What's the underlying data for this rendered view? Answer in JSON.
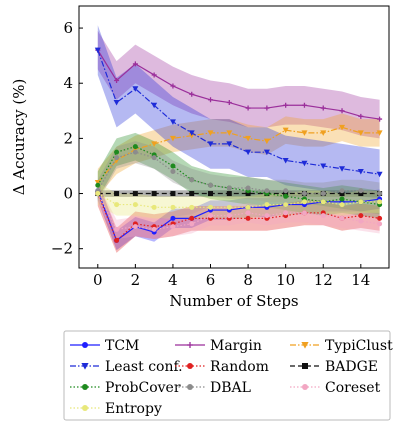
{
  "chart_data": {
    "type": "line",
    "xlabel": "Number of Steps",
    "ylabel": "Δ Accuracy (%)",
    "xlim": [
      -1,
      15.5
    ],
    "ylim": [
      -2.7,
      6.8
    ],
    "xticks": [
      0,
      2,
      4,
      6,
      8,
      10,
      12,
      14
    ],
    "yticks": [
      -2,
      0,
      2,
      4,
      6
    ],
    "grid": false,
    "legend_placement": "below-plot",
    "x": [
      0,
      1,
      2,
      3,
      4,
      5,
      6,
      7,
      8,
      9,
      10,
      11,
      12,
      13,
      14,
      15
    ],
    "series": [
      {
        "name": "TCM",
        "color": "#1f1fff",
        "style": "solid",
        "marker": "circle",
        "values": [
          0.1,
          -1.7,
          -1.2,
          -1.4,
          -0.9,
          -0.9,
          -0.6,
          -0.6,
          -0.5,
          -0.5,
          -0.4,
          -0.4,
          -0.3,
          -0.3,
          -0.3,
          -0.2
        ],
        "band": 0.35
      },
      {
        "name": "Margin",
        "color": "#9b2f9b",
        "style": "solid",
        "marker": "plus",
        "values": [
          5.2,
          4.1,
          4.7,
          4.3,
          3.9,
          3.6,
          3.4,
          3.3,
          3.1,
          3.1,
          3.2,
          3.2,
          3.1,
          3.0,
          2.8,
          2.7
        ],
        "band": 0.7
      },
      {
        "name": "TypiClust",
        "color": "#f0a020",
        "style": "dashdot",
        "marker": "triangle-down",
        "values": [
          0.4,
          1.2,
          1.6,
          1.8,
          2.0,
          2.1,
          2.2,
          2.2,
          2.0,
          1.9,
          2.3,
          2.2,
          2.2,
          2.4,
          2.2,
          2.2
        ],
        "band": 0.5
      },
      {
        "name": "Least conf.",
        "color": "#1e2bd8",
        "style": "dashdot",
        "marker": "triangle-down",
        "values": [
          5.2,
          3.3,
          3.8,
          3.2,
          2.6,
          2.2,
          1.8,
          1.8,
          1.5,
          1.5,
          1.2,
          1.1,
          1.0,
          0.9,
          0.8,
          0.7
        ],
        "band": 0.9
      },
      {
        "name": "Random",
        "color": "#e02020",
        "style": "dotted",
        "marker": "circle",
        "values": [
          0.0,
          -1.7,
          -1.1,
          -1.2,
          -1.1,
          -0.9,
          -0.9,
          -0.9,
          -0.9,
          -0.9,
          -0.8,
          -0.7,
          -0.7,
          -0.9,
          -0.8,
          -0.9
        ],
        "band": 0.45
      },
      {
        "name": "BADGE",
        "color": "#111111",
        "style": "dashed",
        "marker": "square",
        "values": [
          0.0,
          0.0,
          0.0,
          0.0,
          0.0,
          0.0,
          0.0,
          0.0,
          0.0,
          0.0,
          0.0,
          0.0,
          0.0,
          0.0,
          0.0,
          0.0
        ],
        "band": 0.12
      },
      {
        "name": "ProbCover",
        "color": "#1e8a1e",
        "style": "dotted",
        "marker": "circle",
        "values": [
          0.3,
          1.5,
          1.7,
          1.4,
          1.0,
          0.5,
          0.3,
          0.2,
          0.1,
          0.0,
          -0.1,
          -0.2,
          -0.3,
          -0.2,
          -0.3,
          -0.4
        ],
        "band": 0.5
      },
      {
        "name": "DBAL",
        "color": "#8c8c8c",
        "style": "dotted",
        "marker": "circle",
        "values": [
          0.1,
          1.3,
          1.5,
          1.3,
          0.8,
          0.5,
          0.3,
          0.2,
          0.2,
          0.1,
          0.1,
          0.0,
          0.0,
          0.1,
          0.1,
          0.0
        ],
        "band": 0.4
      },
      {
        "name": "Coreset",
        "color": "#f2a6c2",
        "style": "dotted",
        "marker": "circle",
        "values": [
          0.0,
          -1.3,
          -1.2,
          -1.3,
          -1.2,
          -1.1,
          -0.8,
          -0.8,
          -0.7,
          -0.8,
          -0.7,
          -0.7,
          -0.8,
          -0.9,
          -1.0,
          -1.1
        ],
        "band": 0.35
      },
      {
        "name": "Entropy",
        "color": "#e8e87a",
        "style": "dotted",
        "marker": "circle",
        "values": [
          0.0,
          -0.4,
          -0.4,
          -0.5,
          -0.5,
          -0.5,
          -0.5,
          -0.5,
          -0.5,
          -0.4,
          -0.4,
          -0.3,
          -0.3,
          -0.4,
          -0.3,
          -0.3
        ],
        "band": 0.4
      }
    ],
    "legend_order": [
      "TCM",
      "Margin",
      "TypiClust",
      "Least conf.",
      "Random",
      "BADGE",
      "ProbCover",
      "DBAL",
      "Coreset",
      "Entropy"
    ]
  }
}
